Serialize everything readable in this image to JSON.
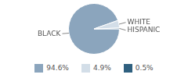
{
  "chart_data": {
    "type": "pie",
    "categories": [
      "BLACK",
      "WHITE",
      "HISPANIC"
    ],
    "values": [
      94.6,
      4.9,
      0.5
    ],
    "value_labels": [
      "94.6%",
      "4.9%",
      "0.5%"
    ],
    "colors": [
      "#8ba5bd",
      "#d3dee8",
      "#2f607f"
    ]
  }
}
